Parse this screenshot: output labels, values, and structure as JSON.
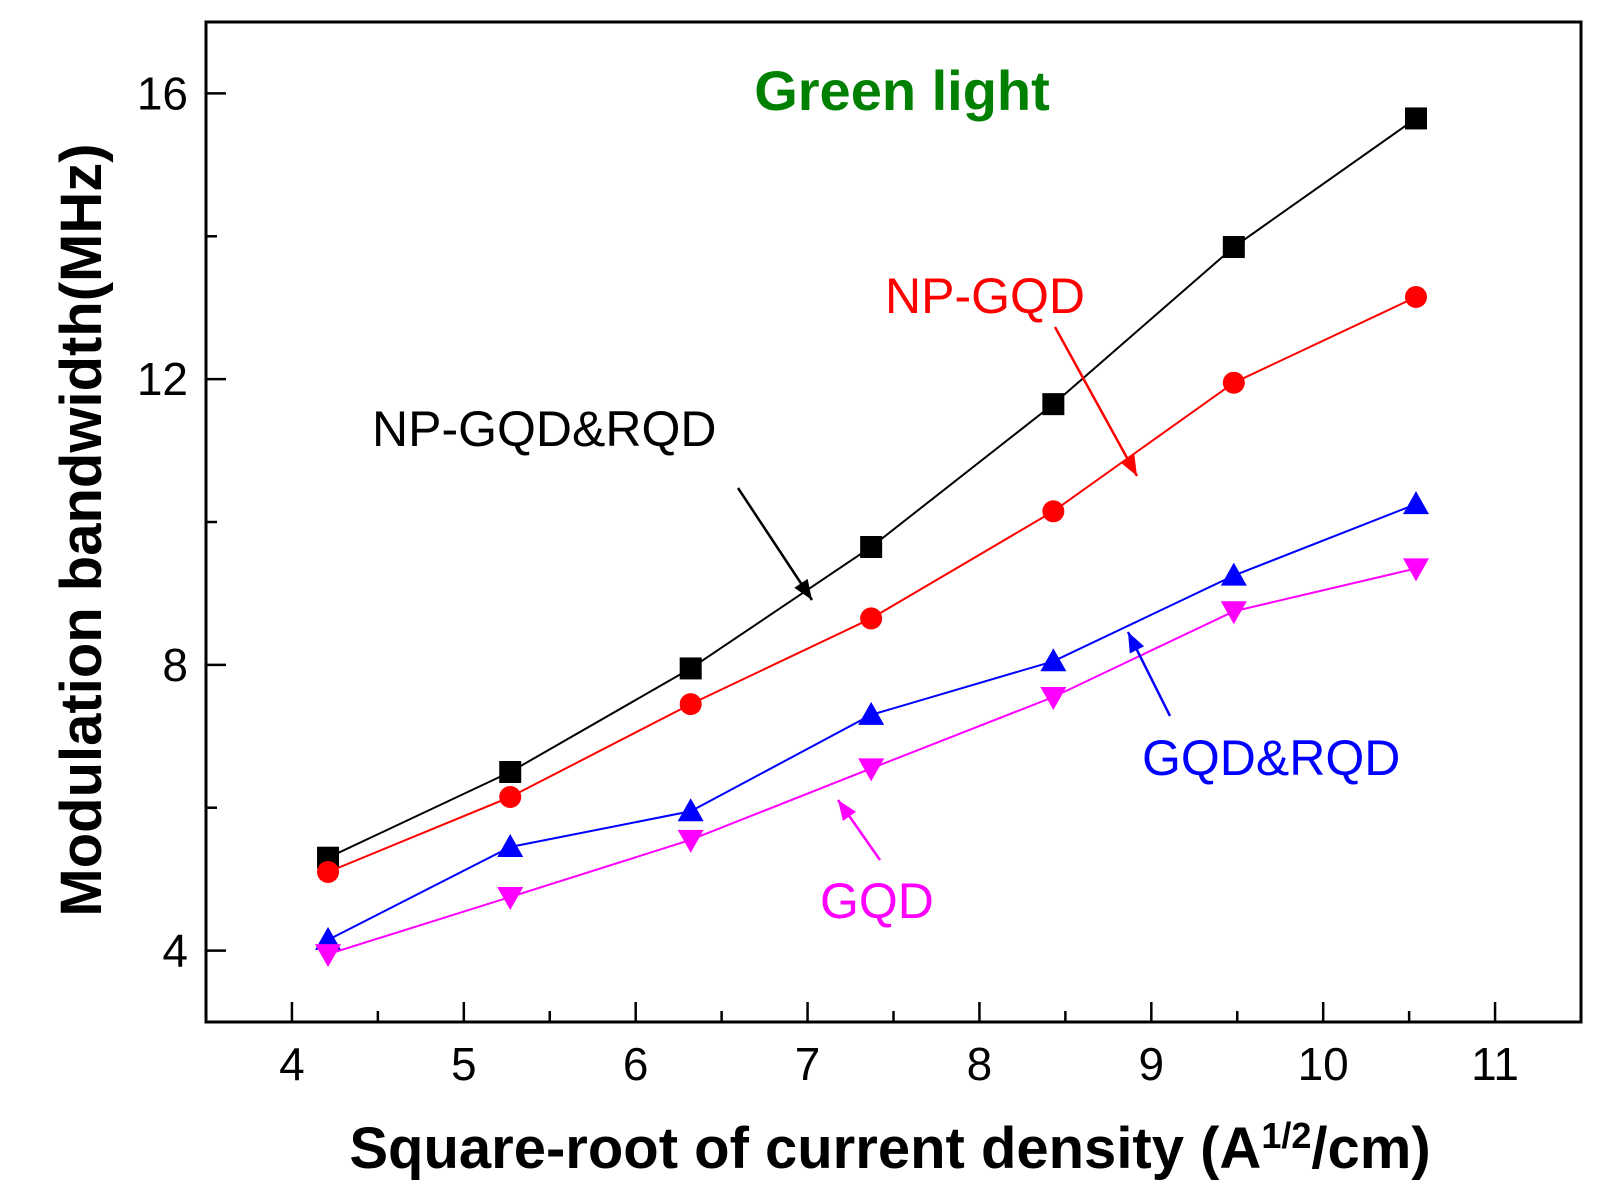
{
  "chart_data": {
    "type": "line",
    "title": "Green light",
    "title_color": "#008000",
    "xlabel_main": "Square-root of current density (A",
    "xlabel_sup": "1/2",
    "xlabel_end": "/cm)",
    "ylabel": "Modulation bandwidth(MHz)",
    "xlim": [
      3.5,
      11.5
    ],
    "ylim": [
      3,
      17
    ],
    "x_ticks": [
      4,
      5,
      6,
      7,
      8,
      9,
      10,
      11
    ],
    "x_tick_labels": [
      "4",
      "5",
      "6",
      "7",
      "8",
      "9",
      "10",
      "11"
    ],
    "y_ticks": [
      4,
      8,
      12,
      16
    ],
    "y_tick_labels": [
      "4",
      "8",
      "12",
      "16"
    ],
    "x": [
      4.21,
      5.27,
      6.32,
      7.37,
      8.43,
      9.48,
      10.54
    ],
    "series": [
      {
        "name": "NP-GQD&RQD",
        "color": "#000000",
        "marker": "square",
        "values": [
          5.3,
          6.5,
          7.95,
          9.65,
          11.65,
          13.85,
          15.65
        ]
      },
      {
        "name": "NP-GQD",
        "color": "#ff0000",
        "marker": "circle",
        "values": [
          5.1,
          6.15,
          7.45,
          8.65,
          10.15,
          11.95,
          13.15
        ]
      },
      {
        "name": "GQD&RQD",
        "color": "#0000ff",
        "marker": "triangle-up",
        "values": [
          4.15,
          5.45,
          5.95,
          7.3,
          8.05,
          9.25,
          10.25
        ]
      },
      {
        "name": "GQD",
        "color": "#ff00ff",
        "marker": "triangle-down",
        "values": [
          3.95,
          4.75,
          5.55,
          6.55,
          7.55,
          8.75,
          9.35
        ]
      }
    ],
    "annotations": [
      {
        "label": "NP-GQD&RQD",
        "series": 0,
        "color": "#000000"
      },
      {
        "label": "NP-GQD",
        "series": 1,
        "color": "#ff0000"
      },
      {
        "label": "GQD&RQD",
        "series": 2,
        "color": "#0000ff"
      },
      {
        "label": "GQD",
        "series": 3,
        "color": "#ff00ff"
      }
    ]
  }
}
